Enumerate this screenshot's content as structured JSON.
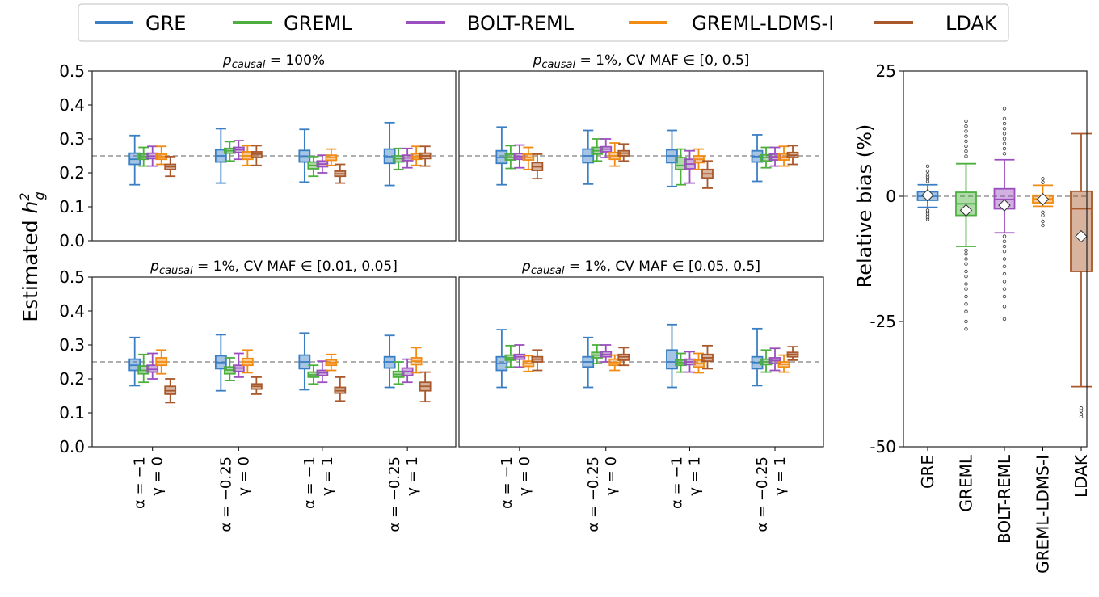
{
  "colors": {
    "GRE": "#3a7fc4",
    "GREML": "#4caf3e",
    "BOLT-REML": "#9b4fbf",
    "GREML-LDMS-I": "#f28b12",
    "LDAK": "#a8582a"
  },
  "legend": {
    "items": [
      "GRE",
      "GREML",
      "BOLT-REML",
      "GREML-LDMS-I",
      "LDAK"
    ],
    "placement": "top"
  },
  "chart_data": [
    {
      "type": "box",
      "panel": "top-left",
      "title": "p_causal = 100%",
      "title_sub": "causal",
      "title_rest": " = 100%",
      "ylabel": "Estimated h²_g",
      "ylim": [
        0,
        0.5
      ],
      "yticks": [
        "0.0",
        "0.1",
        "0.2",
        "0.3",
        "0.4",
        "0.5"
      ],
      "reference_line": 0.25,
      "categories": [
        "α = −1, γ = 0",
        "α = −0.25, γ = 0",
        "α = −1, γ = 1",
        "α = −0.25, γ = 1"
      ],
      "series": [
        {
          "name": "GRE",
          "boxes": [
            [
              0.165,
              0.225,
              0.24,
              0.258,
              0.31
            ],
            [
              0.17,
              0.232,
              0.25,
              0.268,
              0.33
            ],
            [
              0.173,
              0.232,
              0.249,
              0.266,
              0.328
            ],
            [
              0.163,
              0.228,
              0.248,
              0.27,
              0.348
            ]
          ]
        },
        {
          "name": "GREML",
          "boxes": [
            [
              0.22,
              0.24,
              0.248,
              0.255,
              0.275
            ],
            [
              0.235,
              0.258,
              0.265,
              0.272,
              0.292
            ],
            [
              0.19,
              0.212,
              0.222,
              0.232,
              0.248
            ],
            [
              0.21,
              0.232,
              0.242,
              0.25,
              0.272
            ]
          ]
        },
        {
          "name": "BOLT-REML",
          "boxes": [
            [
              0.22,
              0.242,
              0.249,
              0.258,
              0.278
            ],
            [
              0.24,
              0.26,
              0.268,
              0.275,
              0.295
            ],
            [
              0.2,
              0.218,
              0.226,
              0.235,
              0.252
            ],
            [
              0.215,
              0.236,
              0.244,
              0.252,
              0.272
            ]
          ]
        },
        {
          "name": "GREML-LDMS-I",
          "boxes": [
            [
              0.225,
              0.24,
              0.248,
              0.255,
              0.278
            ],
            [
              0.222,
              0.24,
              0.25,
              0.262,
              0.28
            ],
            [
              0.222,
              0.237,
              0.245,
              0.252,
              0.27
            ],
            [
              0.222,
              0.24,
              0.248,
              0.256,
              0.278
            ]
          ]
        },
        {
          "name": "LDAK",
          "boxes": [
            [
              0.19,
              0.21,
              0.218,
              0.225,
              0.248
            ],
            [
              0.222,
              0.245,
              0.255,
              0.262,
              0.28
            ],
            [
              0.17,
              0.19,
              0.197,
              0.205,
              0.225
            ],
            [
              0.22,
              0.242,
              0.25,
              0.258,
              0.278
            ]
          ]
        }
      ]
    },
    {
      "type": "box",
      "panel": "top-right",
      "title": "p_causal = 1%, CV MAF ∈ [0, 0.5]",
      "title_sub": "causal",
      "title_rest": " = 1%, CV MAF ∈ [0, 0.5]",
      "ylim": [
        0,
        0.5
      ],
      "reference_line": 0.25,
      "categories": [
        "α = −1, γ = 0",
        "α = −0.25, γ = 0",
        "α = −1, γ = 1",
        "α = −0.25, γ = 1"
      ],
      "series": [
        {
          "name": "GRE",
          "boxes": [
            [
              0.165,
              0.228,
              0.245,
              0.265,
              0.335
            ],
            [
              0.167,
              0.23,
              0.25,
              0.27,
              0.325
            ],
            [
              0.16,
              0.23,
              0.25,
              0.268,
              0.325
            ],
            [
              0.175,
              0.232,
              0.248,
              0.265,
              0.312
            ]
          ]
        },
        {
          "name": "GREML",
          "boxes": [
            [
              0.213,
              0.238,
              0.245,
              0.255,
              0.28
            ],
            [
              0.235,
              0.255,
              0.265,
              0.275,
              0.3
            ],
            [
              0.165,
              0.21,
              0.222,
              0.245,
              0.27
            ],
            [
              0.215,
              0.235,
              0.245,
              0.253,
              0.275
            ]
          ]
        },
        {
          "name": "BOLT-REML",
          "boxes": [
            [
              0.215,
              0.24,
              0.248,
              0.257,
              0.282
            ],
            [
              0.245,
              0.262,
              0.27,
              0.277,
              0.3
            ],
            [
              0.17,
              0.212,
              0.226,
              0.24,
              0.265
            ],
            [
              0.22,
              0.238,
              0.247,
              0.255,
              0.275
            ]
          ]
        },
        {
          "name": "GREML-LDMS-I",
          "boxes": [
            [
              0.21,
              0.238,
              0.245,
              0.255,
              0.275
            ],
            [
              0.22,
              0.24,
              0.25,
              0.26,
              0.288
            ],
            [
              0.21,
              0.23,
              0.24,
              0.25,
              0.27
            ],
            [
              0.22,
              0.238,
              0.246,
              0.256,
              0.278
            ]
          ]
        },
        {
          "name": "LDAK",
          "boxes": [
            [
              0.183,
              0.207,
              0.218,
              0.23,
              0.255
            ],
            [
              0.235,
              0.25,
              0.258,
              0.265,
              0.285
            ],
            [
              0.155,
              0.185,
              0.197,
              0.21,
              0.235
            ],
            [
              0.225,
              0.245,
              0.252,
              0.26,
              0.28
            ]
          ]
        }
      ]
    },
    {
      "type": "box",
      "panel": "bottom-left",
      "title": "p_causal = 1%, CV MAF ∈ [0.01, 0.05]",
      "title_sub": "causal",
      "title_rest": " = 1%, CV MAF ∈ [0.01, 0.05]",
      "ylim": [
        0,
        0.5
      ],
      "yticks": [
        "0.0",
        "0.1",
        "0.2",
        "0.3",
        "0.4",
        "0.5"
      ],
      "reference_line": 0.25,
      "categories": [
        "α = −1, γ = 0",
        "α = −0.25, γ = 0",
        "α = −1, γ = 1",
        "α = −0.25, γ = 1"
      ],
      "series": [
        {
          "name": "GRE",
          "boxes": [
            [
              0.18,
              0.225,
              0.24,
              0.258,
              0.322
            ],
            [
              0.165,
              0.23,
              0.248,
              0.268,
              0.33
            ],
            [
              0.168,
              0.23,
              0.25,
              0.27,
              0.335
            ],
            [
              0.175,
              0.232,
              0.25,
              0.265,
              0.328
            ]
          ]
        },
        {
          "name": "GREML",
          "boxes": [
            [
              0.19,
              0.215,
              0.225,
              0.238,
              0.272
            ],
            [
              0.195,
              0.215,
              0.226,
              0.235,
              0.262
            ],
            [
              0.185,
              0.205,
              0.212,
              0.22,
              0.24
            ],
            [
              0.185,
              0.205,
              0.213,
              0.222,
              0.25
            ]
          ]
        },
        {
          "name": "BOLT-REML",
          "boxes": [
            [
              0.2,
              0.22,
              0.228,
              0.24,
              0.275
            ],
            [
              0.205,
              0.222,
              0.232,
              0.24,
              0.275
            ],
            [
              0.19,
              0.21,
              0.218,
              0.225,
              0.252
            ],
            [
              0.19,
              0.21,
              0.222,
              0.232,
              0.258
            ]
          ]
        },
        {
          "name": "GREML-LDMS-I",
          "boxes": [
            [
              0.215,
              0.24,
              0.25,
              0.262,
              0.285
            ],
            [
              0.218,
              0.24,
              0.25,
              0.26,
              0.285
            ],
            [
              0.225,
              0.24,
              0.248,
              0.256,
              0.272
            ],
            [
              0.218,
              0.242,
              0.252,
              0.262,
              0.292
            ]
          ]
        },
        {
          "name": "LDAK",
          "boxes": [
            [
              0.13,
              0.155,
              0.165,
              0.178,
              0.2
            ],
            [
              0.155,
              0.17,
              0.178,
              0.185,
              0.205
            ],
            [
              0.135,
              0.158,
              0.165,
              0.175,
              0.205
            ],
            [
              0.133,
              0.165,
              0.178,
              0.19,
              0.22
            ]
          ]
        }
      ]
    },
    {
      "type": "box",
      "panel": "bottom-right",
      "title": "p_causal = 1%, CV MAF ∈ [0.05, 0.5]",
      "title_sub": "causal",
      "title_rest": " = 1%, CV MAF ∈ [0.05, 0.5]",
      "ylim": [
        0,
        0.5
      ],
      "reference_line": 0.25,
      "categories": [
        "α = −1, γ = 0",
        "α = −0.25, γ = 0",
        "α = −1, γ = 1",
        "α = −0.25, γ = 1"
      ],
      "series": [
        {
          "name": "GRE",
          "boxes": [
            [
              0.175,
              0.225,
              0.245,
              0.265,
              0.345
            ],
            [
              0.175,
              0.235,
              0.25,
              0.265,
              0.322
            ],
            [
              0.175,
              0.23,
              0.25,
              0.285,
              0.36
            ],
            [
              0.18,
              0.23,
              0.248,
              0.265,
              0.348
            ]
          ]
        },
        {
          "name": "GREML",
          "boxes": [
            [
              0.235,
              0.255,
              0.262,
              0.27,
              0.298
            ],
            [
              0.245,
              0.262,
              0.27,
              0.278,
              0.3
            ],
            [
              0.22,
              0.24,
              0.248,
              0.255,
              0.275
            ],
            [
              0.22,
              0.242,
              0.25,
              0.258,
              0.285
            ]
          ]
        },
        {
          "name": "BOLT-REML",
          "boxes": [
            [
              0.235,
              0.258,
              0.265,
              0.272,
              0.3
            ],
            [
              0.25,
              0.265,
              0.272,
              0.28,
              0.3
            ],
            [
              0.22,
              0.242,
              0.25,
              0.258,
              0.28
            ],
            [
              0.225,
              0.245,
              0.254,
              0.262,
              0.29
            ]
          ]
        },
        {
          "name": "GREML-LDMS-I",
          "boxes": [
            [
              0.222,
              0.237,
              0.245,
              0.252,
              0.268
            ],
            [
              0.225,
              0.24,
              0.248,
              0.258,
              0.27
            ],
            [
              0.218,
              0.235,
              0.245,
              0.255,
              0.275
            ],
            [
              0.22,
              0.235,
              0.243,
              0.25,
              0.27
            ]
          ]
        },
        {
          "name": "LDAK",
          "boxes": [
            [
              0.225,
              0.25,
              0.258,
              0.265,
              0.285
            ],
            [
              0.24,
              0.255,
              0.265,
              0.272,
              0.292
            ],
            [
              0.23,
              0.252,
              0.262,
              0.272,
              0.298
            ],
            [
              0.255,
              0.265,
              0.272,
              0.278,
              0.295
            ]
          ]
        }
      ]
    },
    {
      "type": "box",
      "panel": "right",
      "ylabel": "Relative bias (%)",
      "ylim": [
        -50,
        25
      ],
      "yticks": [
        "-50",
        "-25",
        "0",
        "25"
      ],
      "reference_line": 0,
      "categories": [
        "GRE",
        "GREML",
        "BOLT-REML",
        "GREML-LDMS-I",
        "LDAK"
      ],
      "boxes": [
        [
          -2.2,
          -0.8,
          0,
          0.9,
          2.3
        ],
        [
          -10,
          -3.8,
          -1.5,
          0.8,
          6.5
        ],
        [
          -7.3,
          -2.5,
          -0.6,
          1.5,
          7.3
        ],
        [
          -2,
          -1.3,
          -0.5,
          0.2,
          2.2
        ],
        [
          -38,
          -15,
          -2.5,
          1,
          12.5
        ]
      ],
      "means": [
        0.2,
        -2.8,
        -1.8,
        -0.6,
        -8
      ],
      "outliers": [
        [
          -4.6,
          -4.2,
          -3.9,
          -3.5,
          -3.1,
          -2.8,
          3,
          3.5,
          3.9,
          4.3,
          5,
          6
        ],
        [
          -26.5,
          -25,
          -23,
          -21.5,
          -20,
          -18.5,
          -17.5,
          -16,
          -15,
          -13.5,
          -12.5,
          -11.5,
          -10.8,
          8,
          9,
          10,
          11,
          12,
          13,
          14,
          15
        ],
        [
          -24.5,
          -22,
          -20,
          -18.5,
          -17,
          -15.5,
          -14,
          -12.5,
          -11,
          -10,
          -9,
          -8,
          8.5,
          9.5,
          10.5,
          11.5,
          12.5,
          13.5,
          14.5,
          15.5,
          17.5
        ],
        [
          -5.8,
          -5,
          -3.8,
          -3.2,
          2.8,
          3.5
        ],
        [
          -44,
          -43.5,
          -42.8,
          -42.3
        ]
      ]
    }
  ]
}
